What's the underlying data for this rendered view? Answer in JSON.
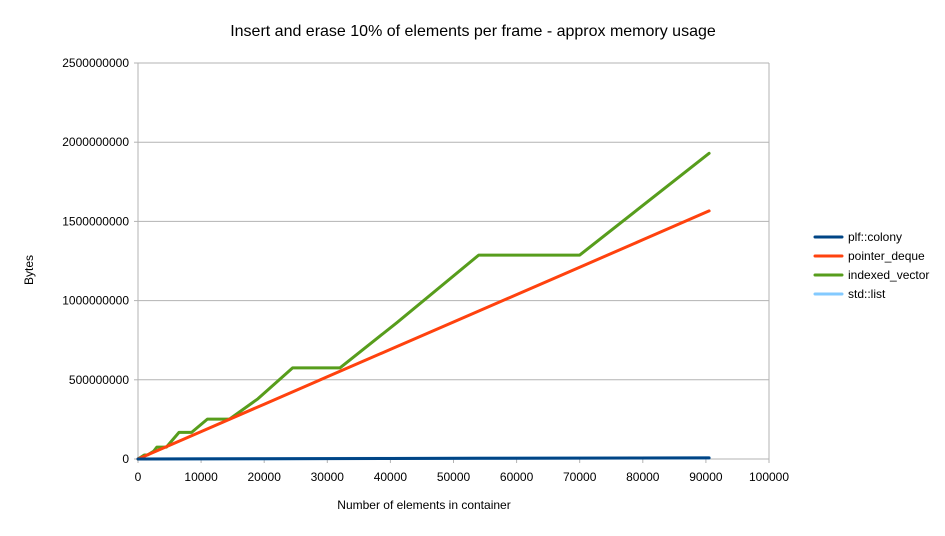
{
  "chart_data": {
    "type": "line",
    "title": "Insert and erase 10% of elements per frame - approx memory usage",
    "xlabel": "Number of elements in container",
    "ylabel": "Bytes",
    "xlim": [
      0,
      100000
    ],
    "ylim": [
      0,
      2500000000
    ],
    "x_ticks": [
      "0",
      "10000",
      "20000",
      "30000",
      "40000",
      "50000",
      "60000",
      "70000",
      "80000",
      "90000",
      "100000"
    ],
    "y_ticks": [
      "0",
      "500000000",
      "1000000000",
      "1500000000",
      "2000000000",
      "2500000000"
    ],
    "grid": "horizontal",
    "legend_position": "right",
    "series": [
      {
        "name": "plf::colony",
        "color": "#004586",
        "points": [
          [
            0,
            0
          ],
          [
            10000,
            800000
          ],
          [
            20000,
            1600000
          ],
          [
            30000,
            2400000
          ],
          [
            40000,
            3200000
          ],
          [
            54000,
            4300000
          ],
          [
            70000,
            5600000
          ],
          [
            90500,
            7200000
          ]
        ]
      },
      {
        "name": "pointer_deque",
        "color": "#ff420e",
        "points": [
          [
            0,
            0
          ],
          [
            10000,
            173000000
          ],
          [
            20000,
            346000000
          ],
          [
            30000,
            519000000
          ],
          [
            40000,
            692000000
          ],
          [
            50000,
            865000000
          ],
          [
            60000,
            1038000000
          ],
          [
            70000,
            1211000000
          ],
          [
            80000,
            1384000000
          ],
          [
            90500,
            1566000000
          ]
        ]
      },
      {
        "name": "indexed_vector",
        "color": "#579d1c",
        "points": [
          [
            0,
            0
          ],
          [
            1000,
            25000000
          ],
          [
            1500,
            25000000
          ],
          [
            2500,
            50000000
          ],
          [
            3000,
            75000000
          ],
          [
            4500,
            75000000
          ],
          [
            6500,
            168000000
          ],
          [
            8500,
            168000000
          ],
          [
            11000,
            252000000
          ],
          [
            14500,
            252000000
          ],
          [
            19000,
            380000000
          ],
          [
            24500,
            575000000
          ],
          [
            32000,
            575000000
          ],
          [
            41000,
            860000000
          ],
          [
            54000,
            1287000000
          ],
          [
            70000,
            1287000000
          ],
          [
            90500,
            1930000000
          ]
        ]
      },
      {
        "name": "std::list",
        "color": "#83caff",
        "points": [
          [
            0,
            0
          ],
          [
            10000,
            1000000
          ],
          [
            20000,
            2000000
          ],
          [
            30000,
            3000000
          ],
          [
            40000,
            4000000
          ],
          [
            54000,
            5000000
          ],
          [
            70000,
            6000000
          ],
          [
            90500,
            7000000
          ]
        ]
      }
    ]
  }
}
